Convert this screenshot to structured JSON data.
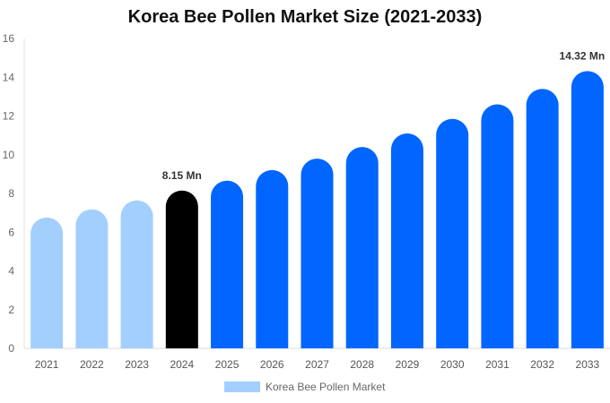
{
  "chart_data": {
    "type": "bar",
    "title": "Korea Bee Pollen Market Size (2021-2033)",
    "categories": [
      "2021",
      "2022",
      "2023",
      "2024",
      "2025",
      "2026",
      "2027",
      "2028",
      "2029",
      "2030",
      "2031",
      "2032",
      "2033"
    ],
    "series": [
      {
        "name": "Korea Bee Pollen Market",
        "values": [
          6.76,
          7.18,
          7.64,
          8.15,
          8.66,
          9.21,
          9.8,
          10.4,
          11.1,
          11.85,
          12.6,
          13.4,
          14.32
        ]
      }
    ],
    "data_labels": {
      "2024": "8.15 Mn",
      "2033": "14.32 Mn"
    },
    "ylim": [
      0,
      16
    ],
    "yticks": [
      0,
      2,
      4,
      6,
      8,
      10,
      12,
      14,
      16
    ],
    "grid": false,
    "legend": "bottom",
    "colors": {
      "historical": "#a3cfff",
      "base_year": "#000000",
      "forecast": "#0066ff"
    }
  }
}
